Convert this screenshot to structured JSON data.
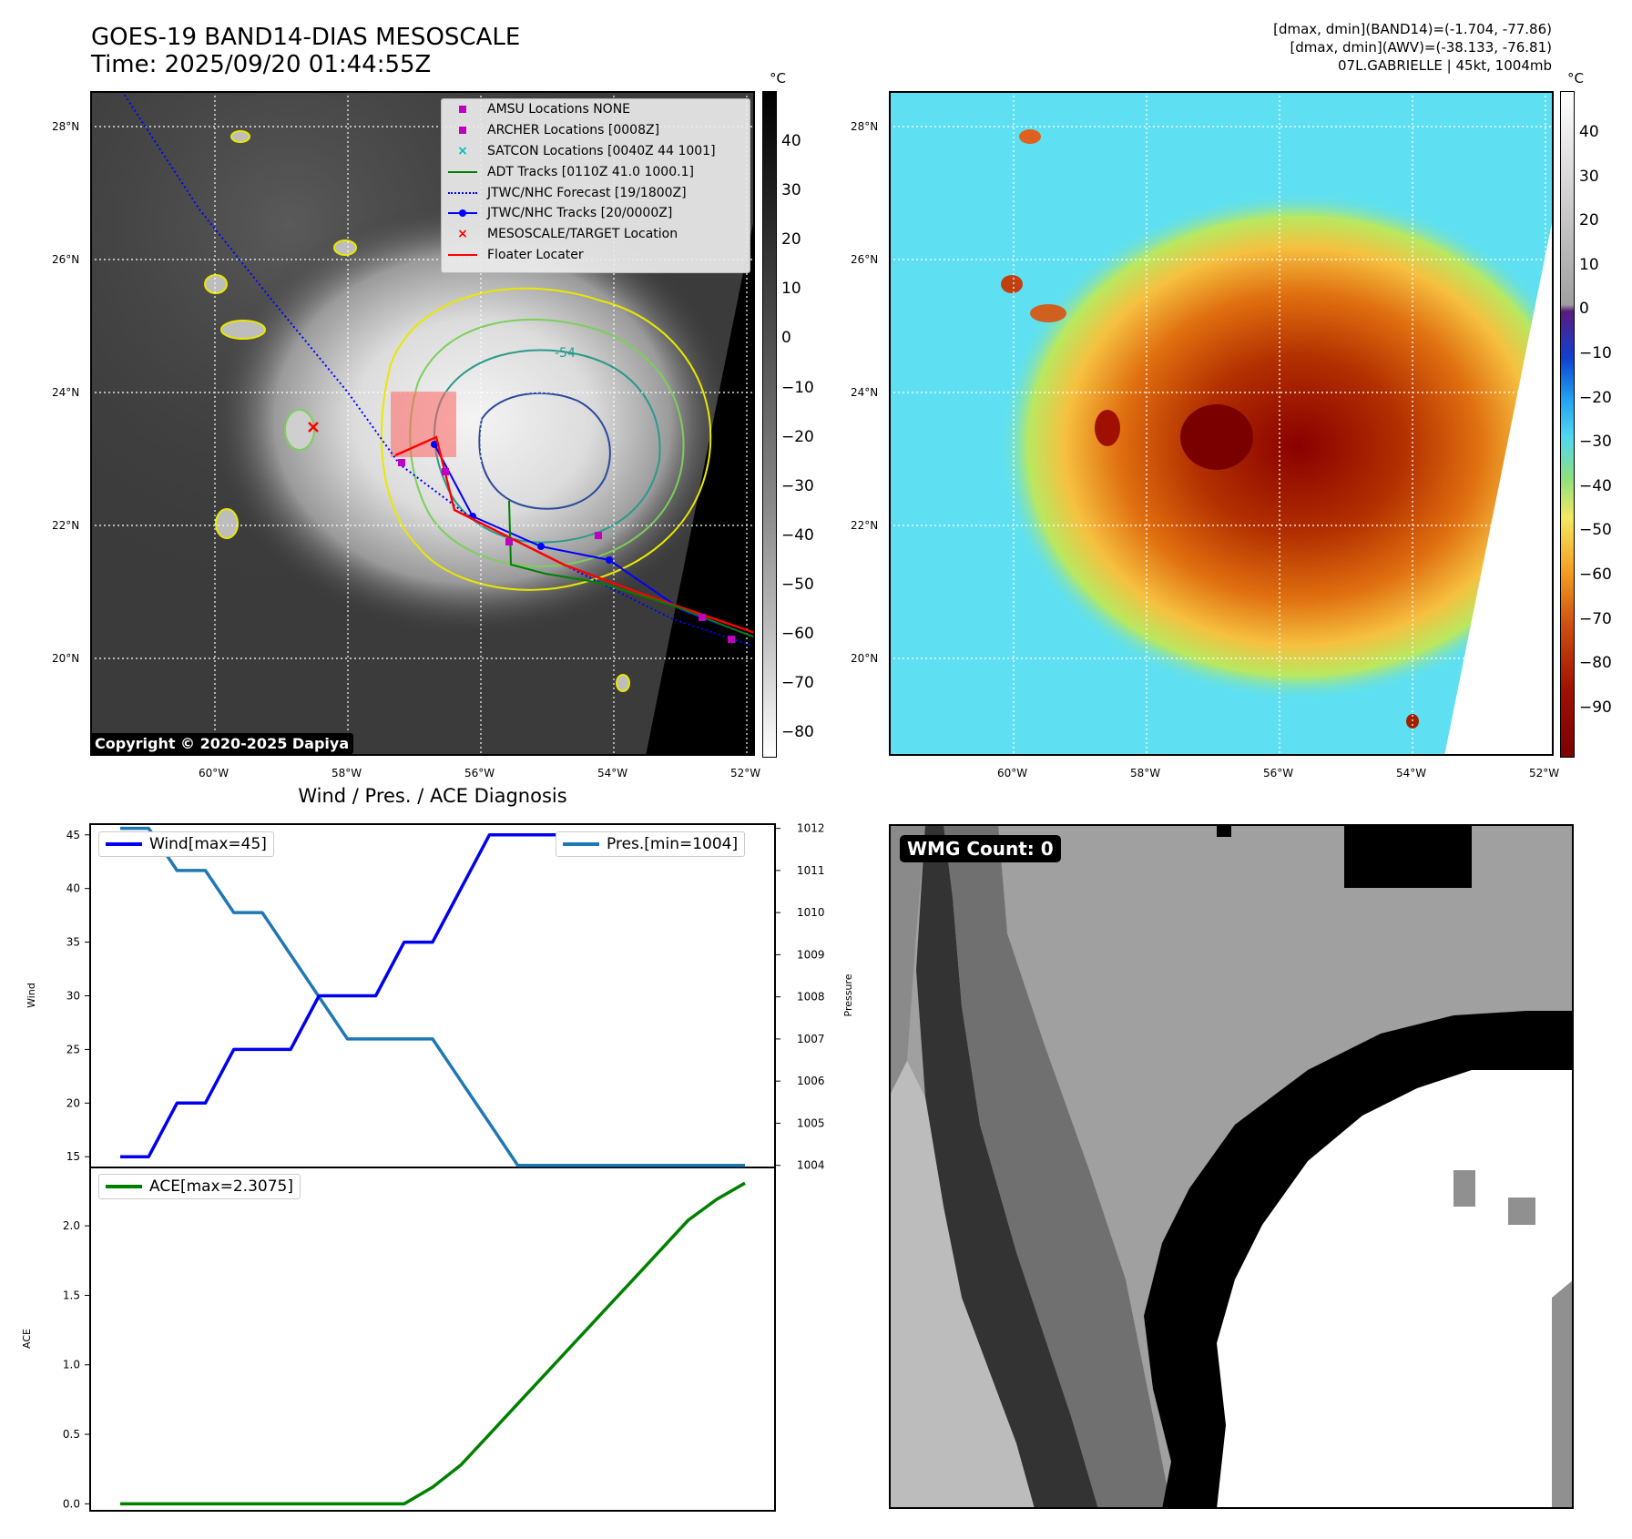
{
  "header": {
    "title_line1": "GOES-19 BAND14-DIAS MESOSCALE",
    "title_line2": "Time: 2025/09/20 01:44:55Z",
    "info_line1": "[dmax, dmin](BAND14)=(-1.704, -77.86)",
    "info_line2": "[dmax, dmin](AWV)=(-38.133, -76.81)",
    "info_line3": "07L.GABRIELLE | 45kt, 1004mb"
  },
  "map": {
    "lat_labels": [
      "28°N",
      "26°N",
      "24°N",
      "22°N",
      "20°N"
    ],
    "lon_labels": [
      "60°W",
      "58°W",
      "56°W",
      "54°W",
      "52°W"
    ],
    "unit": "°C",
    "copyright": "Copyright © 2020-2025 Dapiya",
    "contour_label": "-54",
    "legend": [
      {
        "label": "AMSU Locations NONE",
        "marker": "square",
        "color": "#c000c0"
      },
      {
        "label": "ARCHER Locations [0008Z]",
        "marker": "square",
        "color": "#c000c0"
      },
      {
        "label": "SATCON Locations [0040Z 44 1001]",
        "marker": "x",
        "color": "#00bfbf"
      },
      {
        "label": "ADT Tracks [0110Z 41.0 1000.1]",
        "marker": "line",
        "color": "#008000"
      },
      {
        "label": "JTWC/NHC Forecast [19/1800Z]",
        "marker": "dotted",
        "color": "#0000ff"
      },
      {
        "label": "JTWC/NHC Tracks [20/0000Z]",
        "marker": "dotline",
        "color": "#0000ff"
      },
      {
        "label": "MESOSCALE/TARGET Location",
        "marker": "x",
        "color": "#ff0000"
      },
      {
        "label": "Floater Locater",
        "marker": "line",
        "color": "#ff0000"
      }
    ],
    "colorbar_gray_ticks": [
      "40",
      "30",
      "20",
      "10",
      "0",
      "−10",
      "−20",
      "−30",
      "−40",
      "−50",
      "−60",
      "−70",
      "−80"
    ],
    "colorbar_color_ticks": [
      "40",
      "30",
      "20",
      "10",
      "0",
      "−10",
      "−20",
      "−30",
      "−40",
      "−50",
      "−60",
      "−70",
      "−80",
      "−90"
    ]
  },
  "diagnosis": {
    "title": "Wind / Pres. / ACE Diagnosis",
    "wind_ylabel": "Wind",
    "pres_ylabel": "Pressure",
    "ace_ylabel": "ACE",
    "wind_legend": "Wind[max=45]",
    "pres_legend": "Pres.[min=1004]",
    "ace_legend": "ACE[max=2.3075]",
    "wind_ticks": [
      "45",
      "40",
      "35",
      "30",
      "25",
      "20",
      "15"
    ],
    "pres_ticks": [
      "1012",
      "1011",
      "1010",
      "1009",
      "1008",
      "1007",
      "1006",
      "1005",
      "1004"
    ],
    "ace_ticks": [
      "2.0",
      "1.5",
      "1.0",
      "0.5",
      "0.0"
    ]
  },
  "wmg": {
    "label": "WMG Count: 0"
  },
  "colors": {
    "wind": "#0000ee",
    "pressure": "#1f77b4",
    "ace": "#008000",
    "floater": "#ff0000",
    "track": "#0000ff"
  },
  "chart_data": [
    {
      "type": "line",
      "title": "Wind / Pres. / ACE Diagnosis",
      "ylabel": "Wind",
      "ylim": [
        14,
        46
      ],
      "y2label": "Pressure",
      "y2lim": [
        1003.95,
        1012.1
      ],
      "series": [
        {
          "name": "Wind[max=45]",
          "axis": "left",
          "values": [
            15,
            15,
            20,
            20,
            25,
            25,
            25,
            30,
            30,
            30,
            35,
            35,
            40,
            45,
            45,
            45,
            45,
            45,
            45,
            45,
            45,
            45,
            45
          ]
        },
        {
          "name": "Pres.[min=1004]",
          "axis": "right",
          "values": [
            1012,
            1012,
            1011,
            1011,
            1010,
            1010,
            1009,
            1008,
            1007,
            1007,
            1007,
            1007,
            1006,
            1005,
            1004,
            1004,
            1004,
            1004,
            1004,
            1004,
            1004,
            1004,
            1004
          ]
        }
      ]
    },
    {
      "type": "line",
      "ylabel": "ACE",
      "ylim": [
        -0.05,
        2.42
      ],
      "series": [
        {
          "name": "ACE[max=2.3075]",
          "values": [
            0,
            0,
            0,
            0,
            0,
            0,
            0,
            0,
            0,
            0,
            0,
            0.12,
            0.28,
            0.5,
            0.72,
            0.94,
            1.16,
            1.38,
            1.6,
            1.82,
            2.04,
            2.19,
            2.3075
          ]
        }
      ]
    }
  ]
}
